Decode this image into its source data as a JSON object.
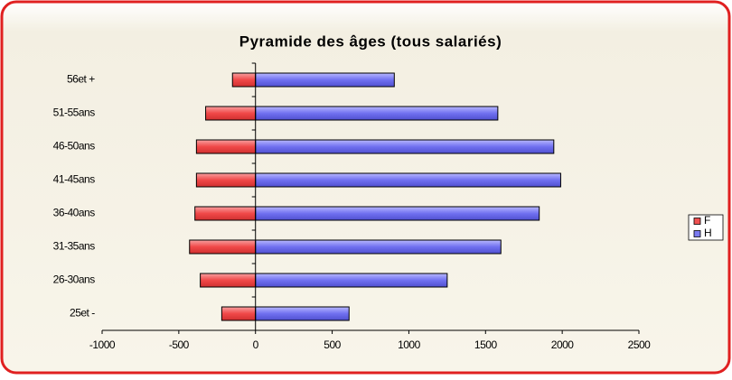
{
  "chart_data": {
    "type": "bar",
    "orientation": "horizontal",
    "title": "Pyramide des âges (tous salariés)",
    "categories": [
      "56et +",
      "51-55ans",
      "46-50ans",
      "41-45ans",
      "36-40ans",
      "31-35ans",
      "26-30ans",
      "25et -"
    ],
    "series": [
      {
        "name": "F",
        "color": "#f05050",
        "values": [
          -150,
          -325,
          -385,
          -385,
          -395,
          -430,
          -360,
          -220
        ]
      },
      {
        "name": "H",
        "color": "#7a7af0",
        "values": [
          905,
          1580,
          1945,
          1990,
          1850,
          1600,
          1250,
          610
        ]
      }
    ],
    "xlim": [
      -1000,
      2500
    ],
    "xticks": [
      -1000,
      -500,
      0,
      500,
      1000,
      1500,
      2000,
      2500
    ],
    "stacked": true,
    "legend": "right"
  }
}
